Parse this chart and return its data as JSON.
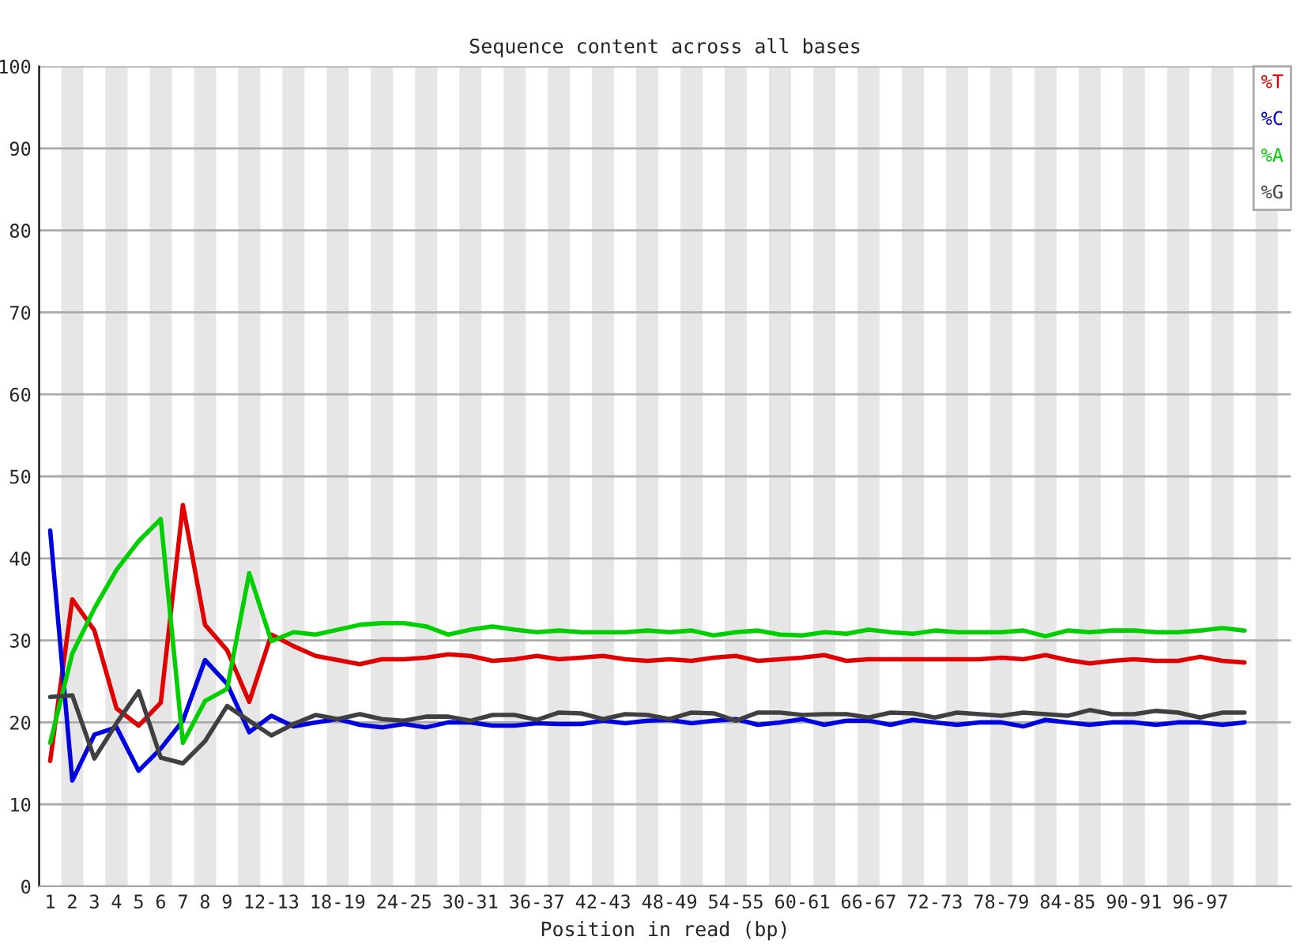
{
  "chart_data": {
    "type": "line",
    "title": "Sequence content across all bases",
    "xlabel": "Position in read (bp)",
    "categories": [
      "1",
      "2",
      "3",
      "4",
      "5",
      "6",
      "7",
      "8",
      "9",
      null,
      "12-13",
      null,
      null,
      "18-19",
      null,
      null,
      "24-25",
      null,
      null,
      "30-31",
      null,
      null,
      "36-37",
      null,
      null,
      "42-43",
      null,
      null,
      "48-49",
      null,
      null,
      "54-55",
      null,
      null,
      "60-61",
      null,
      null,
      "66-67",
      null,
      null,
      "72-73",
      null,
      null,
      "78-79",
      null,
      null,
      "84-85",
      null,
      null,
      "90-91",
      null,
      null,
      "96-97",
      null,
      null
    ],
    "series": [
      {
        "name": "%T",
        "color": "#e00000",
        "values": [
          15.3,
          35.0,
          31.2,
          21.7,
          19.6,
          22.4,
          46.5,
          31.9,
          28.8,
          22.5,
          30.7,
          29.3,
          28.1,
          27.6,
          27.1,
          27.7,
          27.7,
          27.9,
          28.3,
          28.1,
          27.5,
          27.7,
          28.1,
          27.7,
          27.9,
          28.1,
          27.7,
          27.5,
          27.7,
          27.5,
          27.9,
          28.1,
          27.5,
          27.7,
          27.9,
          28.2,
          27.5,
          27.7,
          27.7,
          27.7,
          27.7,
          27.7,
          27.7,
          27.9,
          27.7,
          28.2,
          27.6,
          27.2,
          27.5,
          27.7,
          27.5,
          27.5,
          28.0,
          27.5,
          27.3
        ]
      },
      {
        "name": "%C",
        "color": "#0000e0",
        "values": [
          43.4,
          12.9,
          18.5,
          19.4,
          14.1,
          16.8,
          20.2,
          27.6,
          24.7,
          18.8,
          20.8,
          19.5,
          20.0,
          20.4,
          19.7,
          19.4,
          19.8,
          19.4,
          20.0,
          20.0,
          19.6,
          19.6,
          19.9,
          19.8,
          19.8,
          20.2,
          19.9,
          20.2,
          20.3,
          19.9,
          20.2,
          20.4,
          19.7,
          20.0,
          20.4,
          19.7,
          20.2,
          20.2,
          19.7,
          20.3,
          20.0,
          19.7,
          20.0,
          20.0,
          19.5,
          20.3,
          20.0,
          19.7,
          20.0,
          20.0,
          19.7,
          20.0,
          20.0,
          19.7,
          20.0
        ]
      },
      {
        "name": "%A",
        "color": "#00d000",
        "values": [
          17.5,
          28.4,
          33.9,
          38.6,
          42.1,
          44.8,
          17.5,
          22.6,
          24.1,
          38.2,
          29.9,
          31.0,
          30.7,
          31.3,
          31.9,
          32.1,
          32.1,
          31.7,
          30.7,
          31.3,
          31.7,
          31.3,
          31.0,
          31.2,
          31.0,
          31.0,
          31.0,
          31.2,
          31.0,
          31.2,
          30.6,
          31.0,
          31.2,
          30.7,
          30.6,
          31.0,
          30.8,
          31.3,
          31.0,
          30.8,
          31.2,
          31.0,
          31.0,
          31.0,
          31.2,
          30.5,
          31.2,
          31.0,
          31.2,
          31.2,
          31.0,
          31.0,
          31.2,
          31.5,
          31.2
        ]
      },
      {
        "name": "%G",
        "color": "#404040",
        "values": [
          23.1,
          23.3,
          15.6,
          19.9,
          23.8,
          15.7,
          15.0,
          17.7,
          22.0,
          20.2,
          18.4,
          19.8,
          20.9,
          20.4,
          21.0,
          20.4,
          20.2,
          20.7,
          20.7,
          20.2,
          20.9,
          20.9,
          20.3,
          21.2,
          21.1,
          20.4,
          21.0,
          20.9,
          20.4,
          21.2,
          21.1,
          20.2,
          21.2,
          21.2,
          20.9,
          21.0,
          21.0,
          20.6,
          21.2,
          21.1,
          20.6,
          21.2,
          21.0,
          20.8,
          21.2,
          21.0,
          20.8,
          21.5,
          21.0,
          21.0,
          21.4,
          21.2,
          20.6,
          21.2,
          21.2
        ]
      }
    ],
    "ylim": [
      0,
      100
    ],
    "yticks": [
      0,
      10,
      20,
      30,
      40,
      50,
      60,
      70,
      80,
      90,
      100
    ],
    "grid": "y",
    "legend": "top right",
    "marker": "none",
    "line_style": "solid"
  }
}
